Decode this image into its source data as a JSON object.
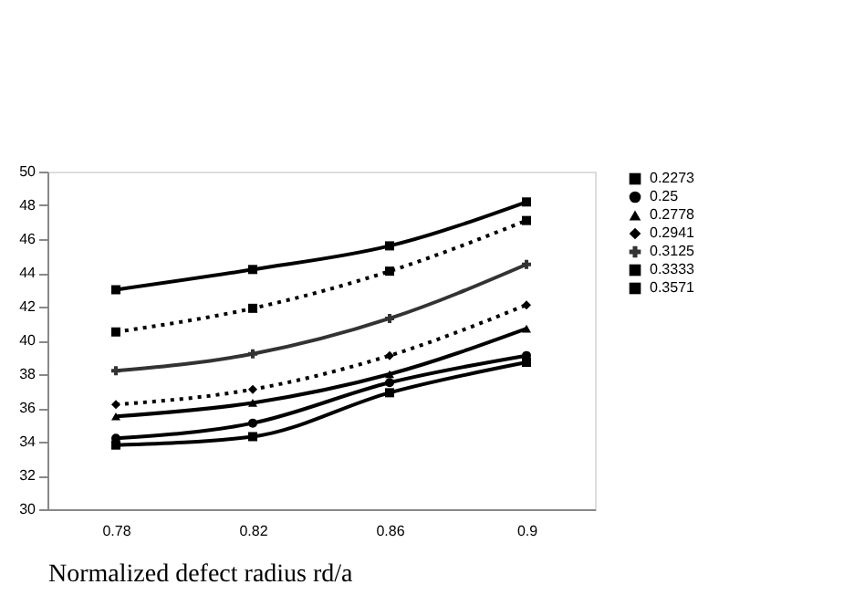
{
  "chart_data": {
    "type": "line",
    "xlabel": "Normalized defect radius rd/a",
    "categories": [
      "0.78",
      "0.82",
      "0.86",
      "0.9"
    ],
    "series": [
      {
        "name": "0.2273",
        "color": "#000000",
        "marker": "square",
        "line_style": "solid",
        "values": [
          33.8,
          34.3,
          36.9,
          38.7
        ]
      },
      {
        "name": "0.25",
        "color": "#000000",
        "marker": "circle",
        "line_style": "solid",
        "values": [
          34.2,
          35.1,
          37.5,
          39.1
        ]
      },
      {
        "name": "0.2778",
        "color": "#000000",
        "marker": "triangle",
        "line_style": "solid",
        "values": [
          35.5,
          36.3,
          38.0,
          40.7
        ]
      },
      {
        "name": "0.2941",
        "color": "#000000",
        "marker": "diamond",
        "line_style": "dotted",
        "values": [
          36.2,
          37.1,
          39.1,
          42.1
        ]
      },
      {
        "name": "0.3125",
        "color": "#333333",
        "marker": "cross",
        "line_style": "solid",
        "values": [
          38.2,
          39.2,
          41.3,
          44.5
        ]
      },
      {
        "name": "0.3333",
        "color": "#000000",
        "marker": "square",
        "line_style": "dotted",
        "values": [
          40.5,
          41.9,
          44.1,
          47.1
        ]
      },
      {
        "name": "0.3571",
        "color": "#000000",
        "marker": "square",
        "line_style": "solid",
        "values": [
          43.0,
          44.2,
          45.6,
          48.2
        ]
      }
    ],
    "ylim": [
      30,
      50
    ],
    "yticks": [
      30,
      32,
      34,
      36,
      38,
      40,
      42,
      44,
      46,
      48,
      50
    ],
    "grid": false,
    "legend": "right"
  }
}
